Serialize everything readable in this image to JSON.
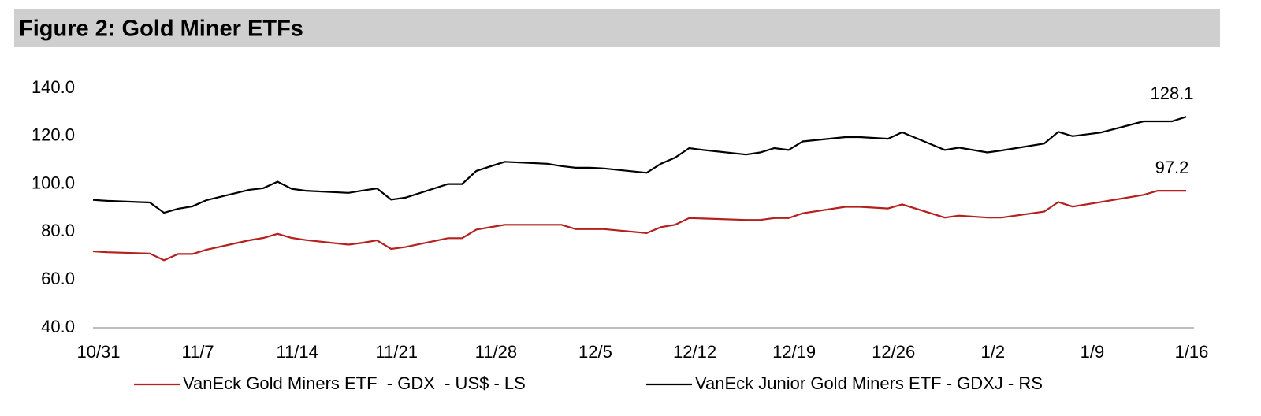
{
  "chart_data": {
    "type": "line",
    "title": "Figure 2: Gold Miner ETFs",
    "x": [
      "10/31",
      "11/1",
      "11/4",
      "11/5",
      "11/6",
      "11/7",
      "11/8",
      "11/11",
      "11/12",
      "11/13",
      "11/14",
      "11/15",
      "11/18",
      "11/19",
      "11/20",
      "11/21",
      "11/22",
      "11/25",
      "11/26",
      "11/27",
      "11/29",
      "12/2",
      "12/3",
      "12/4",
      "12/5",
      "12/6",
      "12/9",
      "12/10",
      "12/11",
      "12/12",
      "12/13",
      "12/16",
      "12/17",
      "12/18",
      "12/19",
      "12/20",
      "12/23",
      "12/24",
      "12/26",
      "12/27",
      "12/30",
      "12/31",
      "1/2",
      "1/3",
      "1/6",
      "1/7",
      "1/8",
      "1/10",
      "1/13",
      "1/14",
      "1/15",
      "1/16"
    ],
    "series": [
      {
        "name": "VanEck Gold Miners ETF  - GDX  - US$ - LS",
        "color": "#b3201e",
        "values": [
          71.9,
          71.5,
          71,
          68.2,
          70.8,
          70.8,
          72.6,
          76.5,
          77.5,
          79.2,
          77.5,
          76.6,
          74.7,
          75.5,
          76.5,
          72.9,
          73.7,
          77.4,
          77.4,
          81,
          83,
          83,
          83,
          81.2,
          81.2,
          81.2,
          79.5,
          82,
          83,
          85.8,
          85.6,
          85,
          85,
          85.8,
          85.8,
          87.8,
          90.5,
          90.5,
          89.8,
          91.5,
          86,
          86.8,
          86,
          86,
          88.5,
          92.5,
          90.6,
          92.5,
          95.5,
          97.2,
          97.2,
          97.2
        ]
      },
      {
        "name": "VanEck Junior Gold Miners ETF - GDXJ - RS",
        "color": "#000000",
        "values": [
          93.4,
          93,
          92.3,
          88,
          89.7,
          90.7,
          93.3,
          97.6,
          98.3,
          101,
          98,
          97.2,
          96.3,
          97.3,
          98.2,
          93.5,
          94.3,
          100,
          100,
          105.5,
          109.3,
          108.5,
          107.5,
          106.8,
          106.8,
          106.5,
          104.7,
          108.5,
          111,
          115,
          114.2,
          112.3,
          113.2,
          115,
          114.2,
          117.8,
          119.6,
          119.6,
          118.9,
          121.6,
          114.2,
          115.2,
          113.2,
          114,
          116.9,
          121.8,
          120,
          121.5,
          126.2,
          126.2,
          126.2,
          128.1
        ]
      }
    ],
    "xlim": [
      "10/31",
      "1/16"
    ],
    "xticks": [
      "10/31",
      "11/7",
      "11/14",
      "11/21",
      "11/28",
      "12/5",
      "12/12",
      "12/19",
      "12/26",
      "1/2",
      "1/9",
      "1/16"
    ],
    "ylim": [
      40,
      140
    ],
    "yticks": [
      {
        "value": 40,
        "label": "40.0"
      },
      {
        "value": 60,
        "label": "60.0"
      },
      {
        "value": 80,
        "label": "80.0"
      },
      {
        "value": 100,
        "label": "100.0"
      },
      {
        "value": 120,
        "label": "120.0"
      },
      {
        "value": 140,
        "label": "140.0"
      }
    ],
    "legend": "bottom"
  }
}
